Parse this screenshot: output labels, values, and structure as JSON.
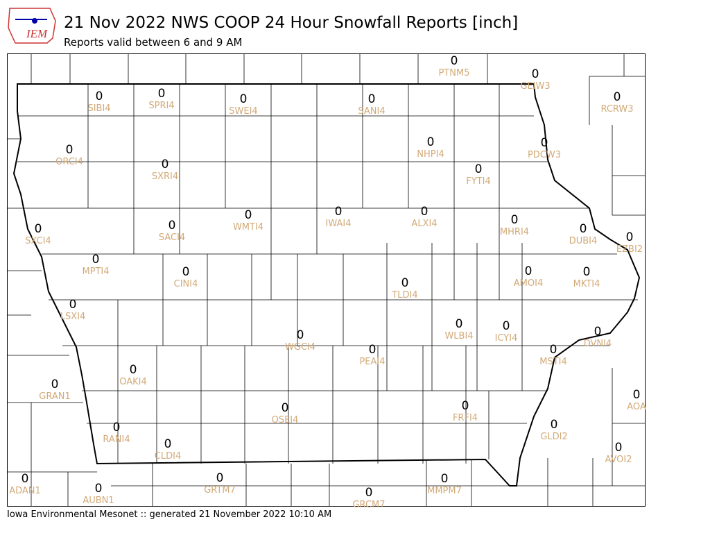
{
  "logo": "IEM",
  "title": "21 Nov 2022 NWS COOP 24 Hour Snowfall Reports [inch]",
  "subtitle": "Reports valid between 6 and 9 AM",
  "footer": "Iowa Environmental Mesonet :: generated 21 November 2022 10:10 AM",
  "stations": [
    {
      "id": "PTNM5",
      "value": 0
    },
    {
      "id": "GEIW3",
      "value": 0
    },
    {
      "id": "SIBI4",
      "value": 0
    },
    {
      "id": "SPRI4",
      "value": 0
    },
    {
      "id": "SWEI4",
      "value": 0
    },
    {
      "id": "SANI4",
      "value": 0
    },
    {
      "id": "RCRW3",
      "value": 0
    },
    {
      "id": "ORCI4",
      "value": 0
    },
    {
      "id": "SXRI4",
      "value": 0
    },
    {
      "id": "NHPI4",
      "value": 0
    },
    {
      "id": "PDCW3",
      "value": 0
    },
    {
      "id": "FYTI4",
      "value": 0
    },
    {
      "id": "SXCI4",
      "value": 0
    },
    {
      "id": "SACI4",
      "value": 0
    },
    {
      "id": "WMTI4",
      "value": 0
    },
    {
      "id": "IWAI4",
      "value": 0
    },
    {
      "id": "ALXI4",
      "value": 0
    },
    {
      "id": "MHRI4",
      "value": 0
    },
    {
      "id": "DUBI4",
      "value": 0
    },
    {
      "id": "EZBI2",
      "value": 0
    },
    {
      "id": "MPTI4",
      "value": 0
    },
    {
      "id": "CINI4",
      "value": 0
    },
    {
      "id": "TLDI4",
      "value": 0
    },
    {
      "id": "AMOI4",
      "value": 0
    },
    {
      "id": "MKTI4",
      "value": 0
    },
    {
      "id": "LSXI4",
      "value": 0
    },
    {
      "id": "WGCI4",
      "value": 0
    },
    {
      "id": "WLBI4",
      "value": 0
    },
    {
      "id": "ICYI4",
      "value": 0
    },
    {
      "id": "PEAI4",
      "value": 0
    },
    {
      "id": "DVNI4",
      "value": 0
    },
    {
      "id": "MSTI4",
      "value": 0
    },
    {
      "id": "OAKI4",
      "value": 0
    },
    {
      "id": "GRAN1",
      "value": 0
    },
    {
      "id": "AOA",
      "value": 0
    },
    {
      "id": "OSEI4",
      "value": 0
    },
    {
      "id": "FRFI4",
      "value": 0
    },
    {
      "id": "RANI4",
      "value": 0
    },
    {
      "id": "CLDI4",
      "value": 0
    },
    {
      "id": "GLDI2",
      "value": 0
    },
    {
      "id": "AVOI2",
      "value": 0
    },
    {
      "id": "ADAN1",
      "value": 0
    },
    {
      "id": "AUBN1",
      "value": 0
    },
    {
      "id": "GRTM7",
      "value": 0
    },
    {
      "id": "MMPM7",
      "value": 0
    },
    {
      "id": "GRCM7",
      "value": 0
    }
  ]
}
